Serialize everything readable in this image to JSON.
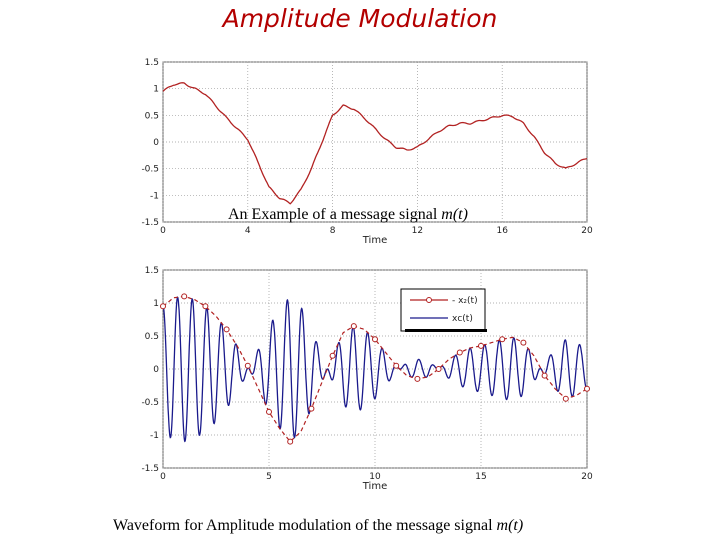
{
  "slide_title": "Amplitude Modulation",
  "colors": {
    "message": "#b22222",
    "carrier": "#1a1a8c",
    "title": "#b30000"
  },
  "top_caption": {
    "text": "An Example of a message signal ",
    "math": "m(t)"
  },
  "bottom_caption": {
    "text": "Waveform for Amplitude modulation of the message signal ",
    "math": "m(t)"
  },
  "chart_data": [
    {
      "type": "line",
      "xlabel": "Time",
      "ylabel": "",
      "xlim": [
        0,
        20
      ],
      "ylim": [
        -1.5,
        1.5
      ],
      "xticks": [
        0,
        4,
        8,
        12,
        16,
        20
      ],
      "yticks": [
        1.5,
        1,
        0.5,
        0,
        -0.5,
        -1,
        -1.5
      ],
      "grid": true,
      "series": [
        {
          "color": "#b22222",
          "x": [
            0,
            0.5,
            1,
            1.5,
            2,
            3,
            4,
            4.5,
            5,
            5.5,
            6,
            6.5,
            7,
            7.5,
            8,
            8.5,
            9,
            9.5,
            10,
            10.5,
            11,
            11.5,
            12,
            12.5,
            13,
            13.5,
            14,
            14.5,
            15,
            15.5,
            16,
            16.5,
            17,
            17.5,
            18,
            18.5,
            19,
            19.5,
            20
          ],
          "y": [
            0.95,
            1.08,
            1.1,
            1.0,
            0.9,
            0.45,
            0.05,
            -0.4,
            -0.85,
            -1.05,
            -1.15,
            -0.9,
            -0.5,
            0.0,
            0.5,
            0.68,
            0.62,
            0.45,
            0.25,
            0.05,
            -0.1,
            -0.15,
            -0.1,
            0.05,
            0.2,
            0.3,
            0.35,
            0.35,
            0.4,
            0.45,
            0.5,
            0.48,
            0.35,
            0.1,
            -0.2,
            -0.4,
            -0.5,
            -0.4,
            -0.3
          ]
        }
      ]
    },
    {
      "type": "line",
      "xlabel": "Time",
      "ylabel": "",
      "xlim": [
        0,
        20
      ],
      "ylim": [
        -1.5,
        1.5
      ],
      "xticks": [
        0,
        5,
        10,
        15,
        20
      ],
      "yticks": [
        1.5,
        1,
        0.5,
        0,
        -0.5,
        -1,
        -1.5
      ],
      "grid": true,
      "legend": {
        "position": "top-right",
        "entries": [
          "- x₂(t)",
          "xᴄ(t)"
        ]
      },
      "series": [
        {
          "name": "- x₂(t)",
          "color": "#b22222",
          "marker": "circle",
          "x": [
            0,
            0.5,
            1,
            1.5,
            2,
            2.5,
            3,
            3.5,
            4,
            4.5,
            5,
            5.5,
            6,
            6.5,
            7,
            7.5,
            8,
            8.5,
            9,
            9.5,
            10,
            10.5,
            11,
            11.5,
            12,
            12.5,
            13,
            13.5,
            14,
            14.5,
            15,
            15.5,
            16,
            16.5,
            17,
            17.5,
            18,
            18.5,
            19,
            19.5,
            20
          ],
          "y": [
            0.95,
            1.08,
            1.1,
            1.05,
            0.95,
            0.8,
            0.6,
            0.35,
            0.05,
            -0.3,
            -0.65,
            -0.9,
            -1.1,
            -0.95,
            -0.6,
            -0.2,
            0.2,
            0.55,
            0.65,
            0.6,
            0.45,
            0.25,
            0.05,
            -0.1,
            -0.15,
            -0.12,
            0.0,
            0.15,
            0.25,
            0.32,
            0.35,
            0.4,
            0.45,
            0.48,
            0.4,
            0.2,
            -0.1,
            -0.3,
            -0.45,
            -0.4,
            -0.3
          ]
        },
        {
          "name": "xᴄ(t)",
          "color": "#1a1a8c",
          "frequency_cycles_per_unit": 1.45
        }
      ]
    }
  ]
}
